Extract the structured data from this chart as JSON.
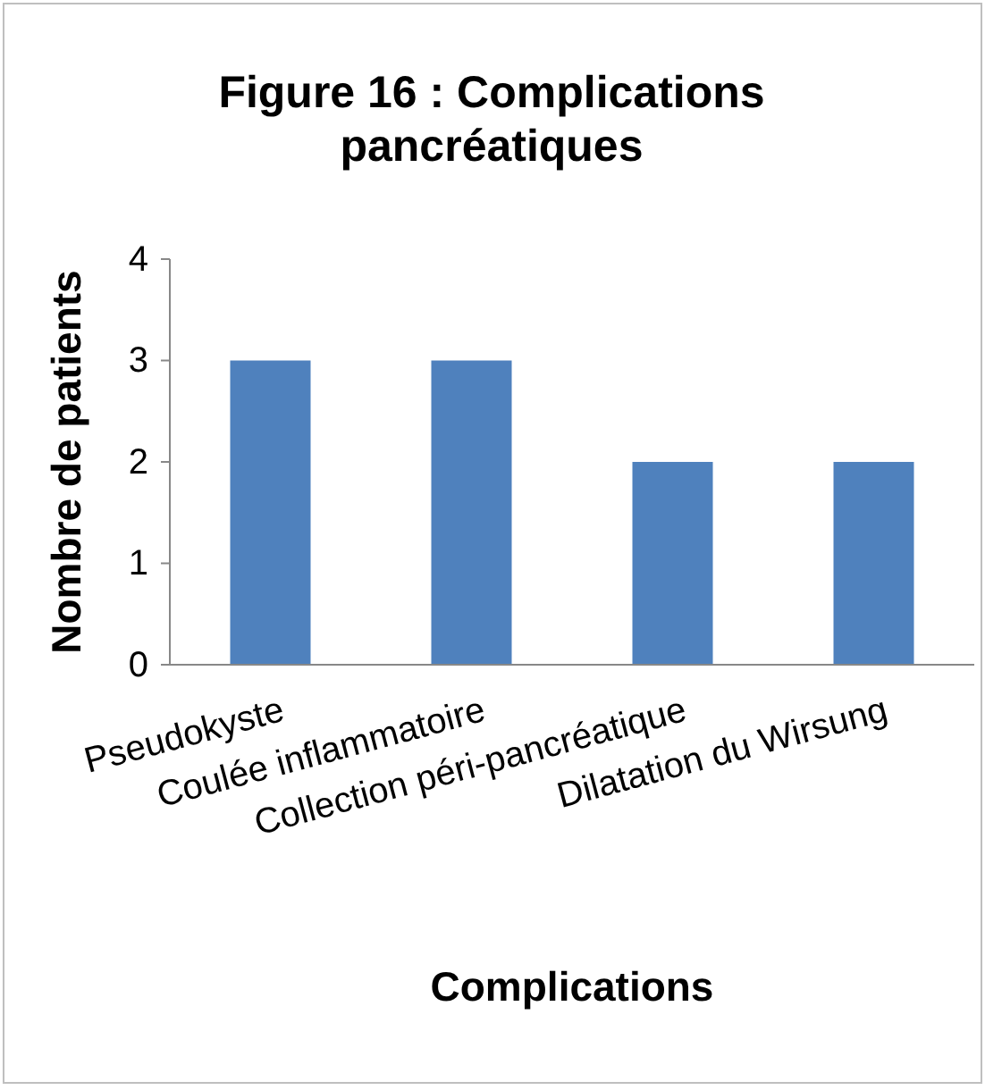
{
  "chart_data": {
    "type": "bar",
    "title": "Figure 16 : Complications pancréatiques",
    "xlabel": "Complications",
    "ylabel": "Nombre de patients",
    "categories": [
      "Pseudokyste",
      "Coulée inflammatoire",
      "Collection péri-pancréatique",
      "Dilatation du Wirsung"
    ],
    "values": [
      3,
      3,
      2,
      2
    ],
    "color": "#4f81bd",
    "ylim": [
      0,
      4
    ],
    "yticks": [
      0,
      1,
      2,
      3,
      4
    ],
    "grid": false
  }
}
